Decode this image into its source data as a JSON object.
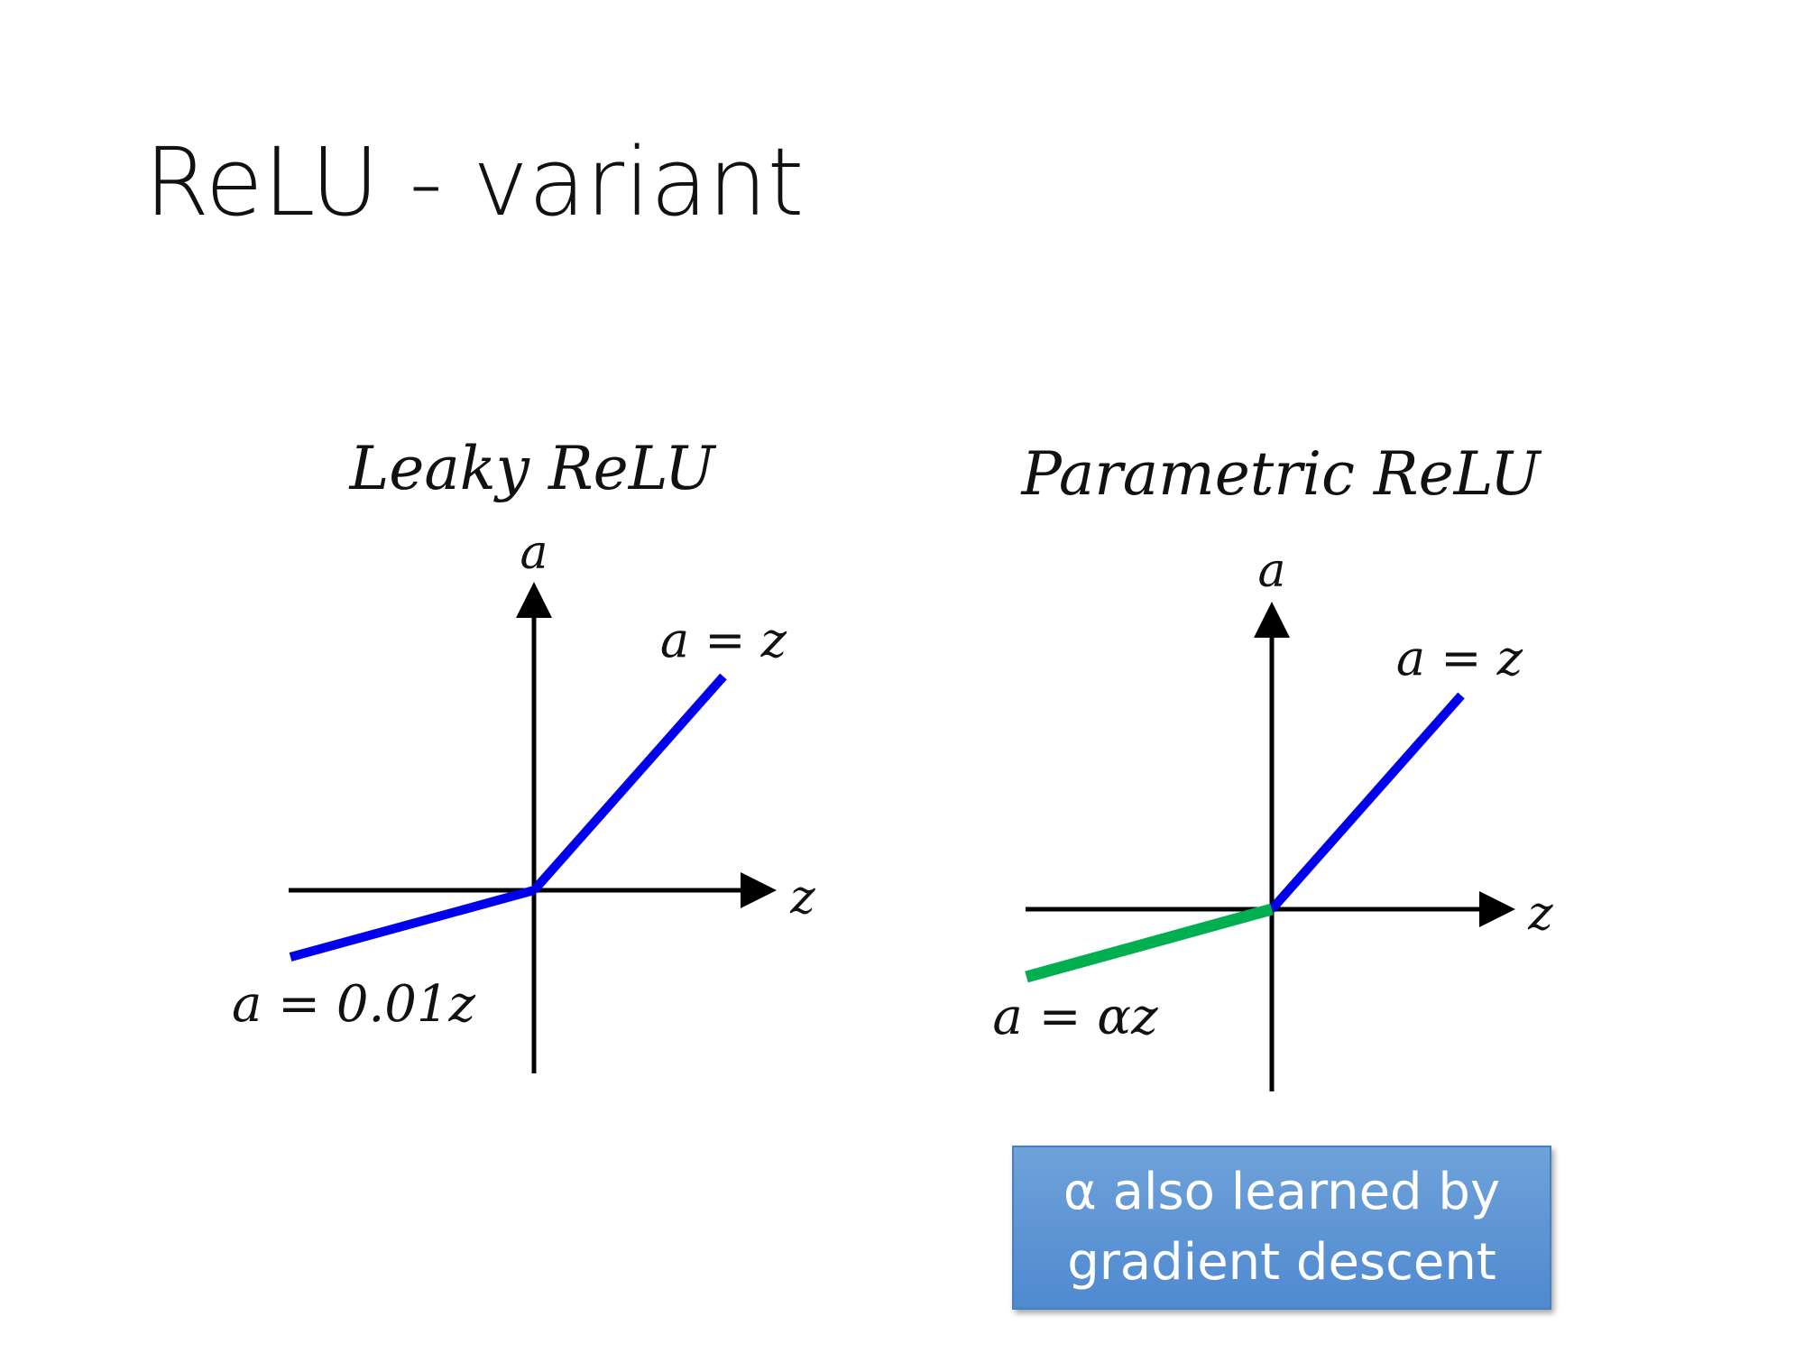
{
  "slide": {
    "title": "ReLU - variant"
  },
  "diagrams": [
    {
      "id": "leaky",
      "title": "Leaky ReLU",
      "y_axis_label": "a",
      "x_axis_label": "z",
      "positive_label": "a = z",
      "negative_label": "a = 0.01z",
      "positive_slope": 1,
      "negative_slope": 0.01,
      "positive_color": "#0000ee",
      "negative_color": "#0000ee"
    },
    {
      "id": "parametric",
      "title": "Parametric ReLU",
      "y_axis_label": "a",
      "x_axis_label": "z",
      "positive_label": "a = z",
      "negative_label": "a = αz",
      "positive_slope": 1,
      "negative_slope": "α",
      "positive_color": "#0000ee",
      "negative_color": "#00b050"
    }
  ],
  "callout": {
    "text": "α also learned by\ngradient descent",
    "color": "#5b9bd5"
  }
}
